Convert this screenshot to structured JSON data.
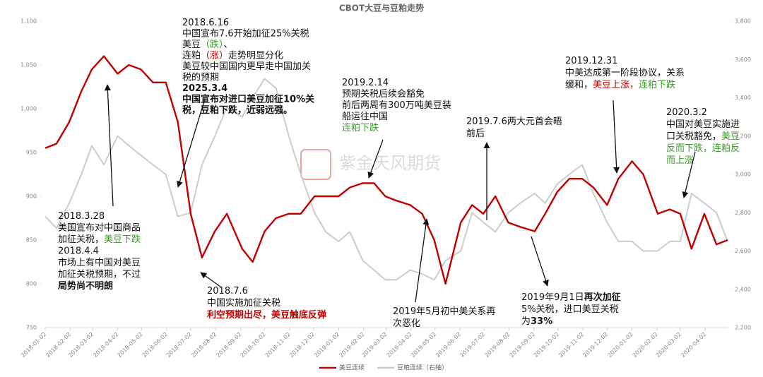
{
  "chart_data": {
    "type": "line",
    "title": "CBOT大豆与豆粕走势",
    "watermark": "紫金天风期货",
    "x": [
      "2018-01-02",
      "2018-01-16",
      "2018-02-01",
      "2018-02-16",
      "2018-03-01",
      "2018-03-16",
      "2018-04-02",
      "2018-04-16",
      "2018-05-01",
      "2018-05-16",
      "2018-06-01",
      "2018-06-16",
      "2018-07-02",
      "2018-07-16",
      "2018-08-01",
      "2018-08-16",
      "2018-09-04",
      "2018-09-17",
      "2018-10-02",
      "2018-10-16",
      "2018-11-01",
      "2018-11-16",
      "2018-12-03",
      "2018-12-17",
      "2019-01-02",
      "2019-01-16",
      "2019-02-01",
      "2019-02-15",
      "2019-03-01",
      "2019-03-15",
      "2019-04-01",
      "2019-04-16",
      "2019-05-01",
      "2019-05-15",
      "2019-06-03",
      "2019-06-17",
      "2019-07-01",
      "2019-07-16",
      "2019-08-01",
      "2019-08-16",
      "2019-09-03",
      "2019-09-16",
      "2019-10-01",
      "2019-10-16",
      "2019-11-01",
      "2019-11-15",
      "2019-12-02",
      "2019-12-16",
      "2020-01-02",
      "2020-01-16",
      "2020-02-03",
      "2020-02-18",
      "2020-03-02",
      "2020-03-16",
      "2020-04-01",
      "2020-04-16",
      "2020-04-30"
    ],
    "series": [
      {
        "name": "美豆连续",
        "color": "#c00000",
        "axis": "y",
        "values": [
          955,
          960,
          985,
          1020,
          1045,
          1060,
          1040,
          1050,
          1045,
          1030,
          1030,
          985,
          880,
          830,
          860,
          880,
          840,
          825,
          860,
          875,
          880,
          880,
          900,
          900,
          900,
          910,
          915,
          915,
          900,
          895,
          890,
          880,
          850,
          800,
          870,
          890,
          880,
          900,
          870,
          865,
          860,
          880,
          905,
          920,
          920,
          910,
          890,
          920,
          940,
          925,
          880,
          885,
          880,
          840,
          880,
          845,
          850
        ]
      },
      {
        "name": "豆粕连续（右轴）",
        "color": "#cccccc",
        "axis": "y2",
        "values": [
          2780,
          2720,
          2850,
          3000,
          3150,
          3050,
          3200,
          3150,
          3100,
          3050,
          3000,
          2780,
          2800,
          3050,
          3200,
          3350,
          3300,
          3400,
          3500,
          3450,
          3200,
          3000,
          2800,
          2700,
          2650,
          2700,
          2550,
          2500,
          2450,
          2450,
          2500,
          2480,
          2450,
          2550,
          2600,
          2800,
          2750,
          2700,
          2800,
          2850,
          2900,
          2850,
          2950,
          3000,
          3050,
          2900,
          2750,
          2650,
          2650,
          2600,
          2600,
          2650,
          2650,
          2900,
          2850,
          2800,
          2650
        ]
      }
    ],
    "xlim": [
      "2018-01-02",
      "2020-04-30"
    ],
    "xticks": [
      "2018-01-02",
      "2018-02-02",
      "2018-03-02",
      "2018-04-02",
      "2018-05-02",
      "2018-06-02",
      "2018-07-02",
      "2018-08-02",
      "2018-09-02",
      "2018-10-02",
      "2018-11-02",
      "2018-12-02",
      "2019-01-02",
      "2019-02-02",
      "2019-03-02",
      "2019-04-02",
      "2019-05-02",
      "2019-06-02",
      "2019-07-02",
      "2019-08-02",
      "2019-09-02",
      "2019-10-02",
      "2019-11-02",
      "2019-12-02",
      "2020-01-02",
      "2020-02-02",
      "2020-03-02",
      "2020-04-02"
    ],
    "ylim": [
      750,
      1100
    ],
    "yticks": [
      750,
      800,
      850,
      900,
      950,
      {
        "value": 1000,
        "label": "1,000"
      },
      {
        "value": 1050,
        "label": "1,050"
      },
      {
        "value": 1100,
        "label": "1,100"
      }
    ],
    "y2lim": [
      2200,
      3800
    ],
    "y2ticks": [
      {
        "value": 2200,
        "label": "2,200"
      },
      {
        "value": 2400,
        "label": "2,400"
      },
      {
        "value": 2600,
        "label": "2,600"
      },
      {
        "value": 2800,
        "label": "2,800"
      },
      {
        "value": 3000,
        "label": "3,000"
      },
      {
        "value": 3200,
        "label": "3,200"
      },
      {
        "value": 3400,
        "label": "3,400"
      },
      {
        "value": 3600,
        "label": "3,600"
      },
      {
        "value": 3800,
        "label": "3,800"
      }
    ],
    "grid": false,
    "legend": "bottom",
    "annotations": [
      {
        "lines": [
          [
            {
              "text": "2018.6.16"
            }
          ],
          [
            {
              "text": "中国宣布7.6开始加征25%关税"
            }
          ],
          [
            {
              "text": "美豆"
            },
            {
              "text": "（跌）",
              "color": "#3a9a2a"
            },
            {
              "text": "、"
            }
          ],
          [
            {
              "text": "连粕"
            },
            {
              "text": "（涨）",
              "color": "#c00000"
            },
            {
              "text": "走势明显分化"
            }
          ],
          [
            {
              "text": "美豆较中国国内更早走中国加关"
            }
          ],
          [
            {
              "text": "税的预期"
            }
          ],
          [
            {
              "text": "2025.3.4",
              "bold": true
            }
          ],
          [
            {
              "text": "中国宣布对进口美豆加征10%关",
              "bold": true
            }
          ],
          [
            {
              "text": "税，豆粕下跌，近弱远强。",
              "bold": true
            }
          ]
        ]
      },
      {
        "lines": [
          [
            {
              "text": "2018.3.28"
            }
          ],
          [
            {
              "text": "美国宣布对中国商品"
            }
          ],
          [
            {
              "text": "加征关税，"
            },
            {
              "text": "美豆下跌",
              "color": "#3a9a2a"
            }
          ],
          [
            {
              "text": "2018.4.4"
            }
          ],
          [
            {
              "text": "市场上有中国对美豆"
            }
          ],
          [
            {
              "text": "加征关税预期，不过"
            }
          ],
          [
            {
              "text": "局势尚不明朗",
              "bold": true
            }
          ]
        ]
      },
      {
        "lines": [
          [
            {
              "text": "2018.7.6"
            }
          ],
          [
            {
              "text": "中国实施加征关税"
            }
          ],
          [
            {
              "text": "利空预期出尽，美豆触底反弹",
              "color": "#c00000",
              "bold": true
            }
          ]
        ]
      },
      {
        "lines": [
          [
            {
              "text": "2019.2.14"
            }
          ],
          [
            {
              "text": "预期关税后续会豁免"
            }
          ],
          [
            {
              "text": "前后两周有300万吨美豆装"
            }
          ],
          [
            {
              "text": "船运往中国"
            }
          ],
          [
            {
              "text": "连粕下跌",
              "color": "#3a9a2a"
            }
          ]
        ]
      },
      {
        "lines": [
          [
            {
              "text": "2019年5月初中美关系再"
            }
          ],
          [
            {
              "text": "次恶化"
            }
          ]
        ]
      },
      {
        "lines": [
          [
            {
              "text": "2019.7.6两大元首会晤"
            }
          ],
          [
            {
              "text": "前后"
            }
          ]
        ]
      },
      {
        "lines": [
          [
            {
              "text": "2019年9月1日"
            },
            {
              "text": "再次加征",
              "bold": true
            }
          ],
          [
            {
              "text": "5%关税，进口美豆关税"
            }
          ],
          [
            {
              "text": "为"
            },
            {
              "text": "33%",
              "bold": true
            }
          ]
        ]
      },
      {
        "lines": [
          [
            {
              "text": "2019.12.31"
            }
          ],
          [
            {
              "text": "中美达成第一阶段协议，关系"
            }
          ],
          [
            {
              "text": "缓和，"
            },
            {
              "text": "美豆上涨，",
              "color": "#c00000"
            },
            {
              "text": "连粕下跌",
              "color": "#3a9a2a"
            }
          ]
        ]
      },
      {
        "lines": [
          [
            {
              "text": "2020.3.2"
            }
          ],
          [
            {
              "text": "中国对美豆实施进"
            }
          ],
          [
            {
              "text": "口关税豁免，"
            },
            {
              "text": "美豆",
              "color": "#3a9a2a"
            }
          ],
          [
            {
              "text": "反而下跌，连粕反",
              "color": "#3a9a2a"
            }
          ],
          [
            {
              "text": "而上涨",
              "color": "#3a9a2a"
            }
          ]
        ]
      }
    ]
  }
}
